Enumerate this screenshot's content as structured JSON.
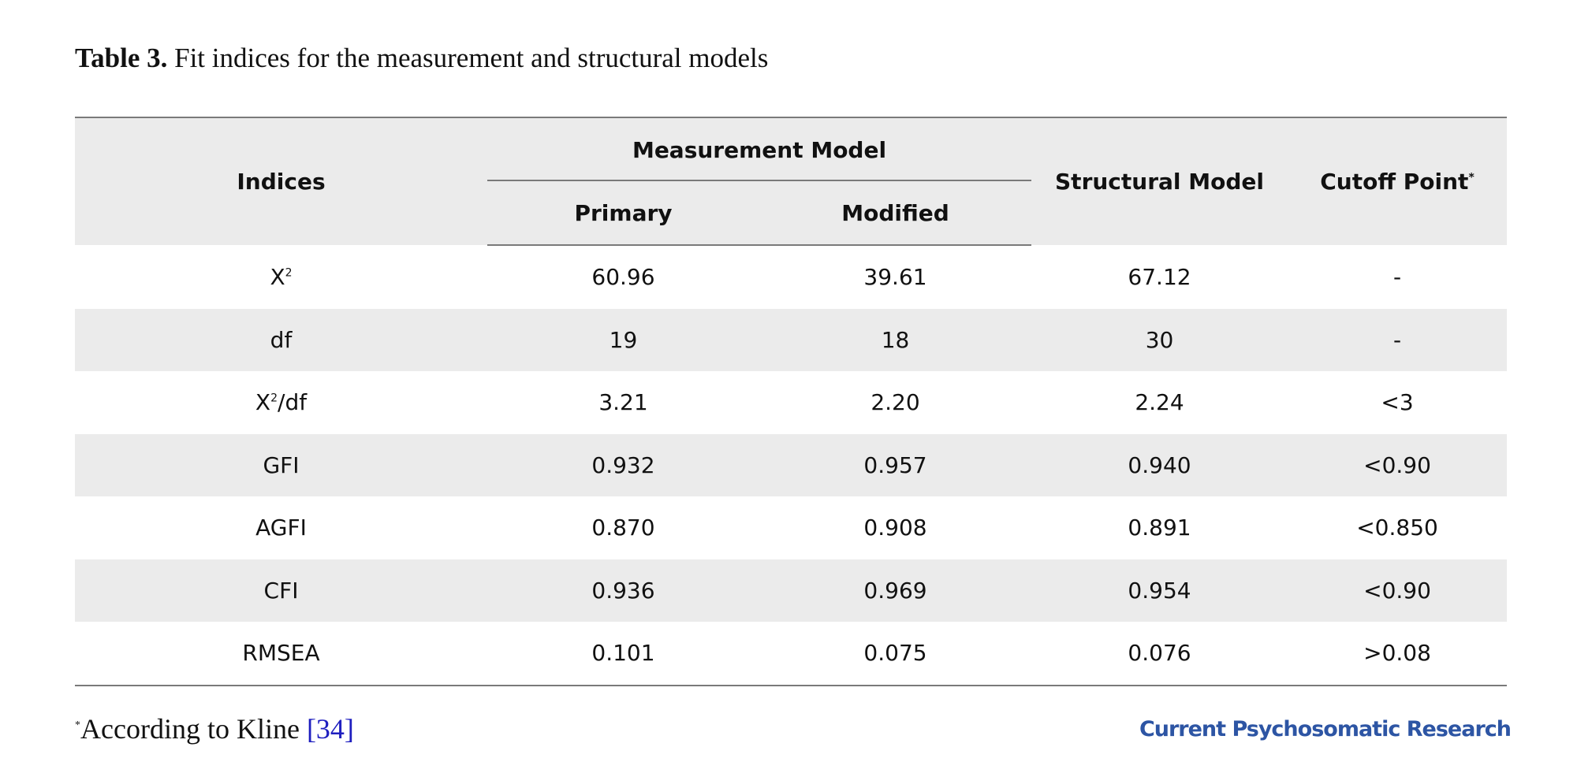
{
  "caption": {
    "label": "Table 3.",
    "text": "Fit indices for the measurement and structural models"
  },
  "table": {
    "headers": {
      "indices": "Indices",
      "measurement_model": "Measurement Model",
      "primary": "Primary",
      "modified": "Modified",
      "structural_model": "Structural Model",
      "cutoff_point": "Cutoff Point",
      "cutoff_mark": "*"
    },
    "rows": [
      {
        "index": "X",
        "index_sup": "2",
        "index_suffix": "",
        "primary": "60.96",
        "modified": "39.61",
        "structural": "67.12",
        "cutoff": "-"
      },
      {
        "index": "df",
        "index_sup": "",
        "index_suffix": "",
        "primary": "19",
        "modified": "18",
        "structural": "30",
        "cutoff": "-"
      },
      {
        "index": "X",
        "index_sup": "2",
        "index_suffix": "/df",
        "primary": "3.21",
        "modified": "2.20",
        "structural": "2.24",
        "cutoff": "<3"
      },
      {
        "index": "GFI",
        "index_sup": "",
        "index_suffix": "",
        "primary": "0.932",
        "modified": "0.957",
        "structural": "0.940",
        "cutoff": "<0.90"
      },
      {
        "index": "AGFI",
        "index_sup": "",
        "index_suffix": "",
        "primary": "0.870",
        "modified": "0.908",
        "structural": "0.891",
        "cutoff": "<0.850"
      },
      {
        "index": "CFI",
        "index_sup": "",
        "index_suffix": "",
        "primary": "0.936",
        "modified": "0.969",
        "structural": "0.954",
        "cutoff": "<0.90"
      },
      {
        "index": "RMSEA",
        "index_sup": "",
        "index_suffix": "",
        "primary": "0.101",
        "modified": "0.075",
        "structural": "0.076",
        "cutoff": ">0.08"
      }
    ]
  },
  "footnote": {
    "mark": "*",
    "text": "According to Kline ",
    "reference": "[34]"
  },
  "journal_name": "Current Psychosomatic Research",
  "colors": {
    "header_bg": "#ebebeb",
    "reference_link": "#1f1fbf",
    "journal_brand": "#2d55a4"
  }
}
